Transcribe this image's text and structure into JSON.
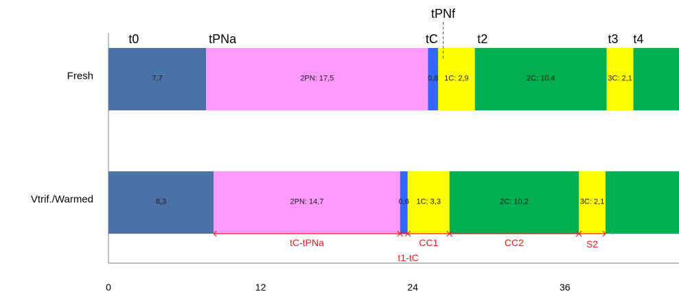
{
  "chart_data": {
    "type": "bar",
    "orientation": "horizontal",
    "stacked": true,
    "categories": [
      "Fresh",
      "Vtrif./Warmed"
    ],
    "xlim": [
      0,
      45
    ],
    "xticks": [
      "0",
      "12",
      "24",
      "36"
    ],
    "xtick_values": [
      0,
      12,
      24,
      36
    ],
    "grid": false,
    "segments": [
      {
        "row": 0,
        "start": 0,
        "value": 7.7,
        "label": "7,7",
        "color": "#4a72a6"
      },
      {
        "row": 0,
        "start": 7.7,
        "value": 17.5,
        "label": "2PN: 17,5",
        "color": "#ff99ff"
      },
      {
        "row": 0,
        "start": 25.2,
        "value": 0.8,
        "label": "0,8",
        "color": "#3366ff"
      },
      {
        "row": 0,
        "start": 26.0,
        "value": 2.9,
        "label": "1C: 2,9",
        "color": "#ffff00"
      },
      {
        "row": 0,
        "start": 28.9,
        "value": 10.4,
        "label": "2C: 10,4",
        "color": "#00b050"
      },
      {
        "row": 0,
        "start": 39.3,
        "value": 2.1,
        "label": "3C: 2,1",
        "color": "#ffff00"
      },
      {
        "row": 0,
        "start": 41.4,
        "value": 3.6,
        "label": "",
        "color": "#00b050"
      },
      {
        "row": 1,
        "start": 0,
        "value": 8.3,
        "label": "8,3",
        "color": "#4a72a6"
      },
      {
        "row": 1,
        "start": 8.3,
        "value": 14.7,
        "label": "2PN: 14,7",
        "color": "#ff99ff"
      },
      {
        "row": 1,
        "start": 23.0,
        "value": 0.6,
        "label": "0,6",
        "color": "#3366ff"
      },
      {
        "row": 1,
        "start": 23.6,
        "value": 3.3,
        "label": "1C: 3,3",
        "color": "#ffff00"
      },
      {
        "row": 1,
        "start": 26.9,
        "value": 10.2,
        "label": "2C: 10,2",
        "color": "#00b050"
      },
      {
        "row": 1,
        "start": 37.1,
        "value": 2.1,
        "label": "3C: 2,1",
        "color": "#ffff00"
      },
      {
        "row": 1,
        "start": 39.2,
        "value": 5.8,
        "label": "",
        "color": "#00b050"
      }
    ],
    "annotations": [
      {
        "text": "t0",
        "x": 2.0
      },
      {
        "text": "tPNa",
        "x": 9.0
      },
      {
        "text": "tC",
        "x": 25.5
      },
      {
        "text": "tPNf",
        "x": 26.4
      },
      {
        "text": "t2",
        "x": 29.5
      },
      {
        "text": "t3",
        "x": 39.8
      },
      {
        "text": "t4",
        "x": 41.8
      }
    ],
    "measurements": [
      {
        "text": "tC-tPNa",
        "from": 8.3,
        "to": 23.0
      },
      {
        "text": "t1-tC",
        "from": 23.0,
        "to": 23.6
      },
      {
        "text": "CC1",
        "from": 23.6,
        "to": 26.9
      },
      {
        "text": "CC2",
        "from": 26.9,
        "to": 37.1
      },
      {
        "text": "S2",
        "from": 37.1,
        "to": 39.2
      }
    ],
    "colors": {
      "measurement": "#ee1c1c",
      "marker_line": "#4a72a6",
      "axis": "#808080"
    }
  }
}
